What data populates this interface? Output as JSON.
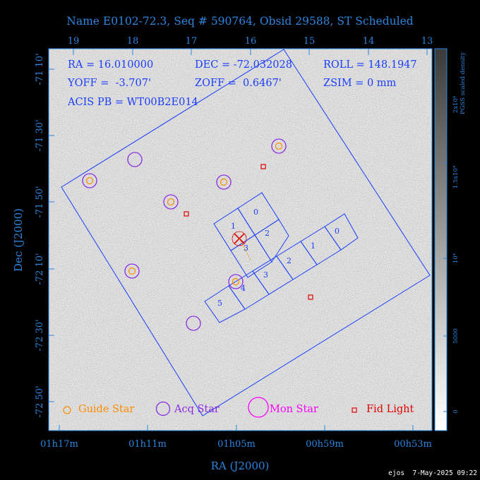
{
  "title": "Name E0102-72.3, Seq # 590764, Obsid 29588, ST Scheduled",
  "top_axis_ticks": [
    "19",
    "18",
    "17",
    "16",
    "15",
    "14",
    "13"
  ],
  "dec_ticks": [
    "-71 10'",
    "-71 30'",
    "-71 50'",
    "-72 10'",
    "-72 30'",
    "-72 50'"
  ],
  "ra_ticks": [
    "01h17m",
    "01h11m",
    "01h05m",
    "00h59m",
    "00h53m"
  ],
  "ylabel": "Dec (J2000)",
  "xlabel": "RA (J2000)",
  "info": {
    "ra": "RA = 16.010000",
    "dec": "DEC = -72.032028",
    "roll": "ROLL = 148.1947",
    "yoff": "YOFF =  -3.707'",
    "zoff": "ZOFF =  0.6467'",
    "zsim": "ZSIM = 0 mm",
    "acis": "ACIS PB = WT00B2E014"
  },
  "colorbar": {
    "title_line1": "2x10⁴",
    "title_line2": "PGSS scaled density",
    "ticks": [
      "1.5x10⁴",
      "10⁴",
      "5000",
      "0"
    ]
  },
  "legend": {
    "guide": "Guide Star",
    "acq": "Acq Star",
    "mon": "Mon Star",
    "fid": "Fid Light"
  },
  "chip_labels_upper": [
    "0",
    "1",
    "2",
    "3"
  ],
  "chip_labels_lower": [
    "0",
    "1",
    "2",
    "3",
    "4",
    "5"
  ],
  "footer": "ejos  7-May-2025 09:22",
  "colors": {
    "axis": "#2a86e0",
    "guide": "#ff8c00",
    "acq": "#8a2be2",
    "mon": "#ff00ff",
    "fid": "#e00000",
    "field": "#1a3dff",
    "white": "#ffffff"
  }
}
